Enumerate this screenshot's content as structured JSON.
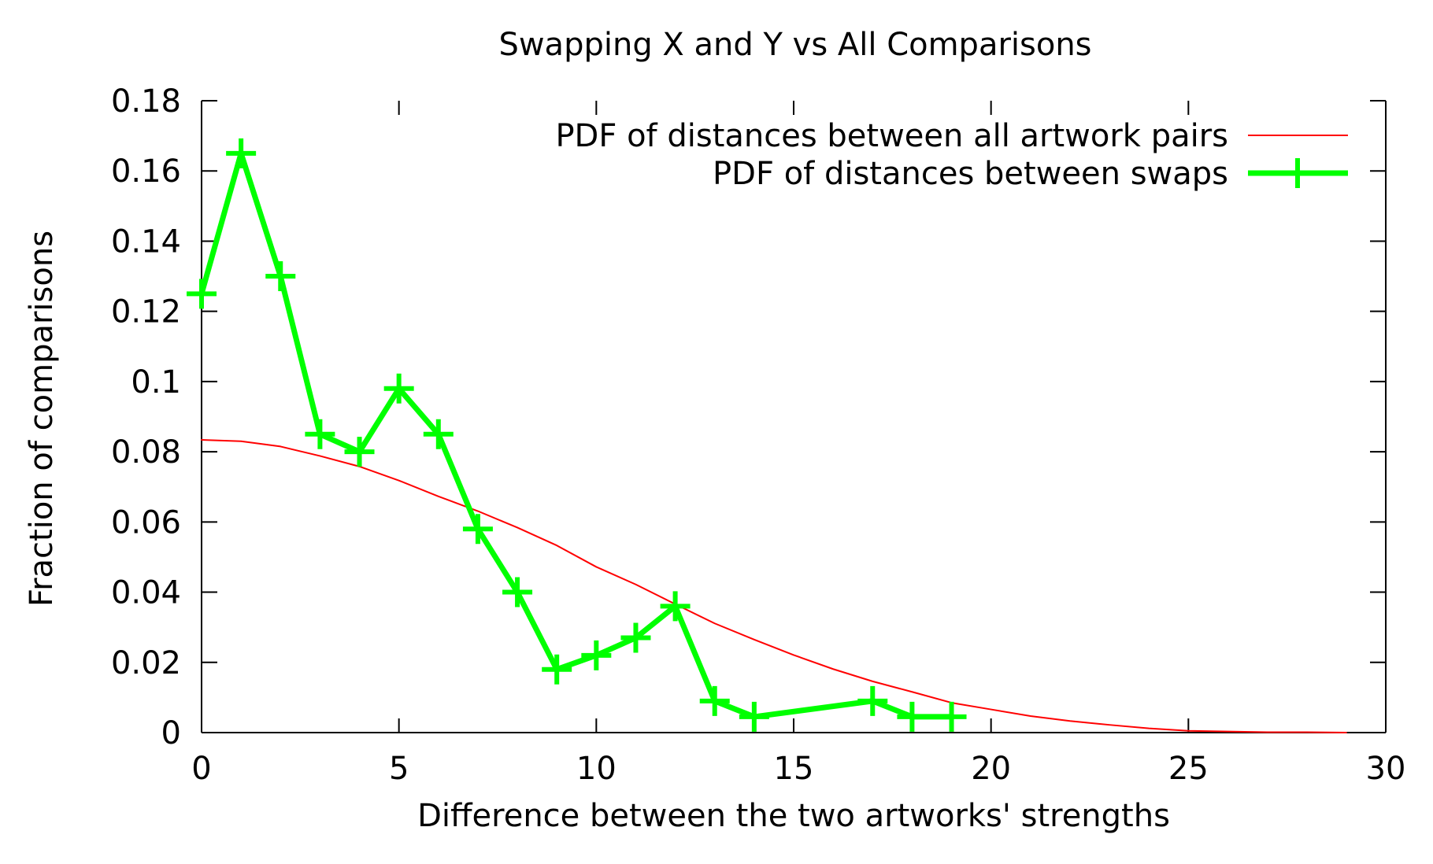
{
  "chart_data": {
    "type": "line",
    "title": "Swapping X and Y vs All Comparisons",
    "xlabel": "Difference between the two artworks' strengths",
    "ylabel": "Fraction of comparisons",
    "xlim": [
      0,
      30
    ],
    "ylim": [
      0,
      0.18
    ],
    "xticks": [
      0,
      5,
      10,
      15,
      20,
      25,
      30
    ],
    "xtick_labels": [
      "0",
      "5",
      "10",
      "15",
      "20",
      "25",
      "30"
    ],
    "yticks": [
      0,
      0.02,
      0.04,
      0.06,
      0.08,
      0.1,
      0.12,
      0.14,
      0.16,
      0.18
    ],
    "ytick_labels": [
      "0",
      "0.02",
      "0.04",
      "0.06",
      "0.08",
      "0.1",
      "0.12",
      "0.14",
      "0.16",
      "0.18"
    ],
    "grid": false,
    "legend_position": "top-right",
    "series": [
      {
        "name": "PDF of distances between all artwork pairs",
        "color": "#ff0000",
        "marker": "none",
        "x": [
          0,
          1,
          2,
          3,
          4,
          5,
          6,
          7,
          8,
          9,
          10,
          11,
          12,
          13,
          14,
          15,
          16,
          17,
          18,
          19,
          20,
          21,
          22,
          23,
          24,
          25,
          26,
          27,
          28,
          29
        ],
        "y": [
          0.0834,
          0.083,
          0.0815,
          0.0788,
          0.0758,
          0.0718,
          0.0673,
          0.0631,
          0.0584,
          0.0533,
          0.0472,
          0.0422,
          0.0366,
          0.0311,
          0.0265,
          0.0221,
          0.0181,
          0.0146,
          0.0116,
          0.0085,
          0.0066,
          0.0047,
          0.0033,
          0.0022,
          0.0012,
          0.0005,
          0.0003,
          0.0001,
          0.0001,
          0.0
        ]
      },
      {
        "name": "PDF of distances between swaps",
        "color": "#00ff00",
        "marker": "plus",
        "x": [
          0,
          1,
          2,
          3,
          4,
          5,
          6,
          7,
          8,
          9,
          10,
          11,
          12,
          13,
          14,
          17,
          18,
          19
        ],
        "y": [
          0.125,
          0.165,
          0.13,
          0.085,
          0.08,
          0.098,
          0.085,
          0.058,
          0.04,
          0.018,
          0.022,
          0.027,
          0.036,
          0.009,
          0.0045,
          0.009,
          0.0045,
          0.0045
        ]
      }
    ]
  }
}
